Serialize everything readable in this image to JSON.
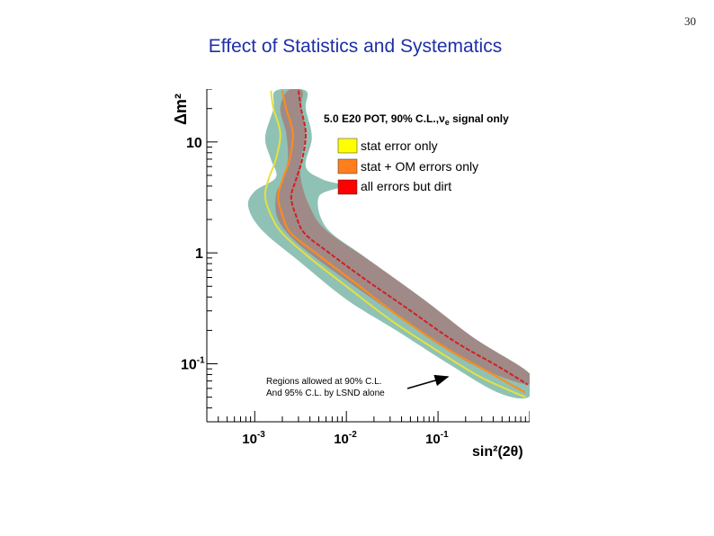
{
  "slide": {
    "number": "30",
    "title": "Effect of Statistics and Systematics"
  },
  "chart_data": {
    "type": "line",
    "title": "5.0 E20 POT, 90% C.L., ν_e signal only",
    "xlabel": "sin²(2θ)",
    "ylabel": "Δm²",
    "x_scale": "log",
    "y_scale": "log",
    "xlim": [
      0.0003,
      1
    ],
    "ylim": [
      0.03,
      30
    ],
    "x_ticks": [
      {
        "value": 0.001,
        "base": "10",
        "exp": "-3"
      },
      {
        "value": 0.01,
        "base": "10",
        "exp": "-2"
      },
      {
        "value": 0.1,
        "base": "10",
        "exp": "-1"
      }
    ],
    "y_ticks": [
      {
        "value": 0.1,
        "base": "10",
        "exp": "-1"
      },
      {
        "value": 1,
        "base": "1",
        "exp": ""
      },
      {
        "value": 10,
        "base": "10",
        "exp": ""
      }
    ],
    "legend": {
      "position": "top-right",
      "header_main": "5.0 E20 POT, 90% C.L.,",
      "header_nu": "ν",
      "header_sub": "e",
      "header_tail": " signal only",
      "entries": [
        {
          "label": "stat error only",
          "color": "#ffff00"
        },
        {
          "label": "stat + OM errors only",
          "color": "#ff7f1e"
        },
        {
          "label": "all errors but dirt",
          "color": "#ff0000"
        }
      ]
    },
    "series": [
      {
        "name": "stat error only",
        "color": "#e6e040",
        "style": "solid",
        "points": [
          [
            0.0015,
            29
          ],
          [
            0.0016,
            20
          ],
          [
            0.0019,
            12
          ],
          [
            0.0017,
            7
          ],
          [
            0.0014,
            4.5
          ],
          [
            0.0013,
            3.2
          ],
          [
            0.0015,
            2.2
          ],
          [
            0.002,
            1.5
          ],
          [
            0.004,
            0.9
          ],
          [
            0.01,
            0.5
          ],
          [
            0.03,
            0.25
          ],
          [
            0.1,
            0.13
          ],
          [
            0.3,
            0.075
          ],
          [
            0.9,
            0.05
          ]
        ]
      },
      {
        "name": "stat + OM errors only",
        "color": "#ff8c1a",
        "style": "solid",
        "points": [
          [
            0.002,
            29
          ],
          [
            0.0022,
            20
          ],
          [
            0.0026,
            12
          ],
          [
            0.0024,
            7
          ],
          [
            0.002,
            4.5
          ],
          [
            0.0018,
            3.2
          ],
          [
            0.002,
            2.2
          ],
          [
            0.0025,
            1.5
          ],
          [
            0.005,
            0.95
          ],
          [
            0.012,
            0.55
          ],
          [
            0.035,
            0.28
          ],
          [
            0.12,
            0.14
          ],
          [
            0.35,
            0.085
          ],
          [
            0.9,
            0.055
          ]
        ]
      },
      {
        "name": "all errors but dirt",
        "color": "#d22020",
        "style": "dashed",
        "points": [
          [
            0.003,
            29
          ],
          [
            0.0032,
            20
          ],
          [
            0.0036,
            12
          ],
          [
            0.0033,
            7
          ],
          [
            0.0028,
            4.5
          ],
          [
            0.0025,
            3.2
          ],
          [
            0.0028,
            2.2
          ],
          [
            0.0035,
            1.5
          ],
          [
            0.0065,
            1.0
          ],
          [
            0.015,
            0.6
          ],
          [
            0.045,
            0.32
          ],
          [
            0.15,
            0.16
          ],
          [
            0.45,
            0.095
          ],
          [
            0.95,
            0.065
          ]
        ]
      }
    ],
    "regions": [
      {
        "name": "LSND 95% C.L.",
        "color": "#8fc2b4",
        "points": [
          [
            0.0017,
            29
          ],
          [
            0.0036,
            29
          ],
          [
            0.0036,
            20
          ],
          [
            0.0042,
            11
          ],
          [
            0.0036,
            6
          ],
          [
            0.0055,
            4.6
          ],
          [
            0.009,
            4.0
          ],
          [
            0.005,
            3.2
          ],
          [
            0.006,
            1.7
          ],
          [
            0.015,
            0.95
          ],
          [
            0.05,
            0.46
          ],
          [
            0.15,
            0.22
          ],
          [
            0.45,
            0.12
          ],
          [
            0.97,
            0.08
          ],
          [
            0.97,
            0.05
          ],
          [
            0.45,
            0.055
          ],
          [
            0.13,
            0.1
          ],
          [
            0.035,
            0.2
          ],
          [
            0.01,
            0.38
          ],
          [
            0.003,
            0.85
          ],
          [
            0.0012,
            1.6
          ],
          [
            0.00085,
            2.6
          ],
          [
            0.001,
            3.6
          ],
          [
            0.0017,
            4.8
          ],
          [
            0.0015,
            7
          ],
          [
            0.0013,
            11
          ],
          [
            0.0016,
            20
          ]
        ]
      },
      {
        "name": "LSND 90% C.L.",
        "color": "#a08a88",
        "points": [
          [
            0.0023,
            29
          ],
          [
            0.0033,
            29
          ],
          [
            0.0032,
            20
          ],
          [
            0.0036,
            12
          ],
          [
            0.0032,
            7
          ],
          [
            0.0032,
            4.5
          ],
          [
            0.004,
            2.6
          ],
          [
            0.006,
            1.6
          ],
          [
            0.02,
            0.8
          ],
          [
            0.07,
            0.38
          ],
          [
            0.25,
            0.17
          ],
          [
            0.95,
            0.085
          ],
          [
            0.95,
            0.065
          ],
          [
            0.3,
            0.09
          ],
          [
            0.1,
            0.15
          ],
          [
            0.03,
            0.3
          ],
          [
            0.009,
            0.6
          ],
          [
            0.003,
            1.2
          ],
          [
            0.0018,
            2.0
          ],
          [
            0.0017,
            3.3
          ],
          [
            0.002,
            4.5
          ],
          [
            0.0023,
            7
          ],
          [
            0.0022,
            12
          ],
          [
            0.0019,
            20
          ]
        ]
      }
    ],
    "annotations": [
      {
        "line1": "Regions allowed at 90% C.L.",
        "line2": "And 95% C.L. by LSND alone",
        "arrow_to": [
          0.15,
          0.13
        ]
      }
    ]
  }
}
